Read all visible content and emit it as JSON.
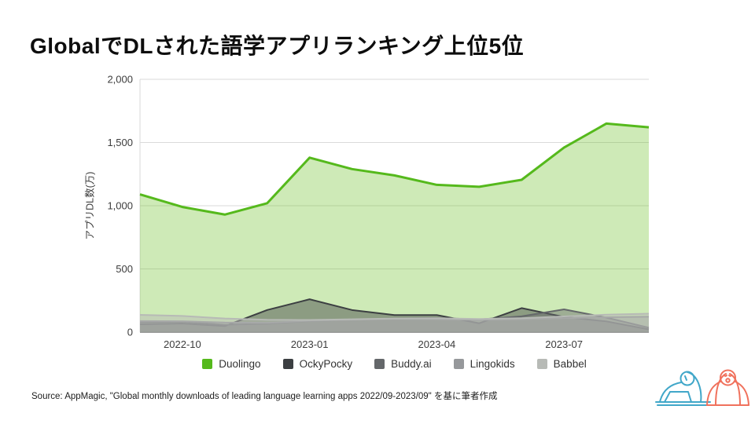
{
  "slide": {
    "title": "GlobalでDLされた語学アプリランキング上位5位",
    "source": "Source: AppMagic, \"Global monthly downloads of leading language learning apps 2022/09-2023/09\" を基に筆者作成"
  },
  "chart_data": {
    "type": "area",
    "title": "",
    "ylabel": "アプリDL数(万)",
    "xlabel": "",
    "ylim": [
      0,
      2000
    ],
    "yticks": [
      0,
      500,
      1000,
      1500,
      2000
    ],
    "ytick_labels": [
      "0",
      "500",
      "1,000",
      "1,500",
      "2,000"
    ],
    "grid": true,
    "legend_position": "bottom",
    "x": [
      "2022-09",
      "2022-10",
      "2022-11",
      "2022-12",
      "2023-01",
      "2023-02",
      "2023-03",
      "2023-04",
      "2023-05",
      "2023-06",
      "2023-07",
      "2023-08",
      "2023-09"
    ],
    "xticks_shown": [
      "2022-10",
      "2023-01",
      "2023-04",
      "2023-07"
    ],
    "series": [
      {
        "name": "Duolingo",
        "color": "#55b91c",
        "fill": "rgba(106,190,35,0.33)",
        "line_width": 3,
        "values": [
          1090,
          990,
          930,
          1020,
          1380,
          1290,
          1240,
          1165,
          1150,
          1205,
          1460,
          1650,
          1620
        ]
      },
      {
        "name": "OckyPocky",
        "color": "#3c3f42",
        "fill": "rgba(60,63,66,0.45)",
        "line_width": 2,
        "values": [
          62,
          68,
          48,
          175,
          260,
          175,
          135,
          135,
          70,
          190,
          120,
          85,
          22
        ]
      },
      {
        "name": "Buddy.ai",
        "color": "#64676a",
        "fill": "rgba(100,103,106,0.45)",
        "line_width": 2,
        "values": [
          78,
          82,
          58,
          66,
          88,
          98,
          108,
          112,
          100,
          125,
          180,
          115,
          35
        ]
      },
      {
        "name": "Lingokids",
        "color": "#96989b",
        "fill": "rgba(150,152,155,0.45)",
        "line_width": 2,
        "values": [
          88,
          86,
          76,
          74,
          90,
          98,
          104,
          102,
          96,
          102,
          110,
          118,
          122
        ]
      },
      {
        "name": "Babbel",
        "color": "#b7bab6",
        "fill": "rgba(183,186,182,0.5)",
        "line_width": 2,
        "values": [
          137,
          128,
          108,
          98,
          96,
          102,
          108,
          110,
          104,
          110,
          124,
          138,
          146
        ]
      }
    ],
    "axis_colors": {
      "gridline": "#dadada",
      "baseline": "#9b9b9b",
      "axis_line": "#d9d9d9",
      "tick_text": "#3c3c3c"
    }
  },
  "logo": {
    "name": "two-figures-mark",
    "blue": "#41a7c9",
    "coral": "#f0715c"
  }
}
